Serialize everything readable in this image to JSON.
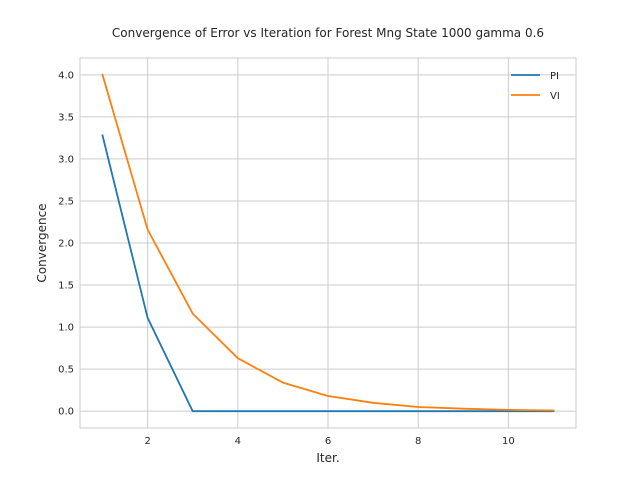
{
  "chart_data": {
    "type": "line",
    "title": "Convergence of Error vs Iteration for Forest Mng State 1000 gamma 0.6",
    "xlabel": "Iter.",
    "ylabel": "Convergence",
    "x": [
      1,
      2,
      3,
      4,
      5,
      6,
      7,
      8,
      9,
      10,
      11
    ],
    "xlim": [
      0.5,
      11.5
    ],
    "ylim": [
      -0.2,
      4.2
    ],
    "xticks": [
      2,
      4,
      6,
      8,
      10
    ],
    "yticks": [
      0.0,
      0.5,
      1.0,
      1.5,
      2.0,
      2.5,
      3.0,
      3.5,
      4.0
    ],
    "grid": true,
    "legend_position": "top-right",
    "series": [
      {
        "name": "PI",
        "color": "#1f77b4",
        "values": [
          3.28,
          1.11,
          0.0,
          0.0,
          0.0,
          0.0,
          0.0,
          0.0,
          0.0,
          0.0,
          0.0
        ]
      },
      {
        "name": "VI",
        "color": "#ff7f0e",
        "values": [
          4.0,
          2.16,
          1.16,
          0.63,
          0.34,
          0.18,
          0.1,
          0.05,
          0.03,
          0.015,
          0.008
        ]
      }
    ]
  }
}
